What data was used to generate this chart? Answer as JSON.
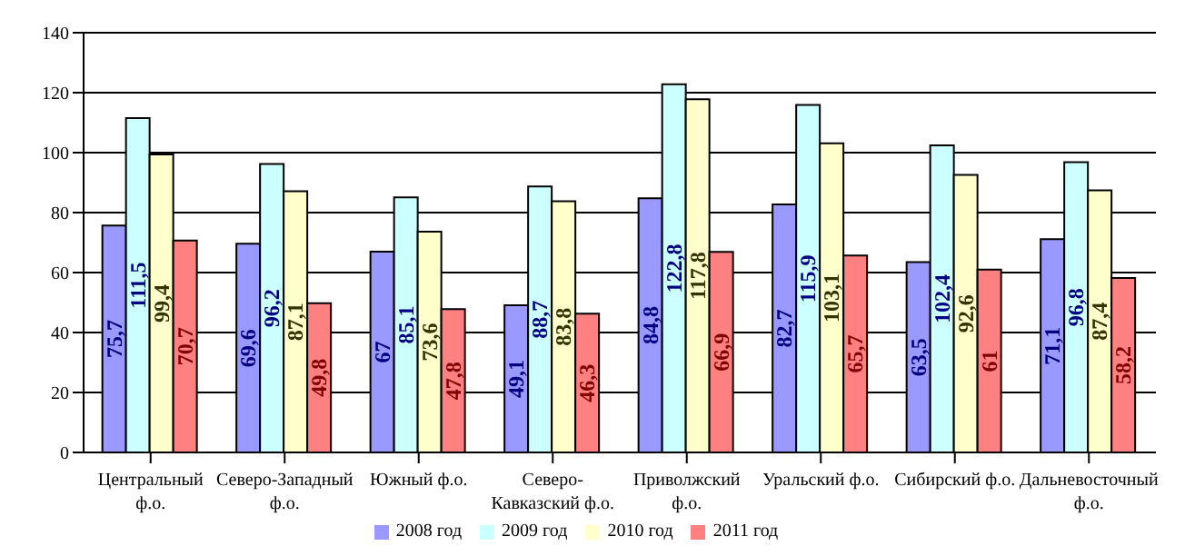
{
  "chart_data": {
    "type": "bar",
    "categories": [
      "Центральный ф.о.",
      "Северо-Западный ф.о.",
      "Южный ф.о.",
      "Северо-Кавказский ф.о.",
      "Приволжский ф.о.",
      "Уральский ф.о.",
      "Сибирский ф.о.",
      "Дальневосточный ф.о."
    ],
    "series": [
      {
        "name": "2008 год",
        "color": "#9999ff",
        "values": [
          75.7,
          69.6,
          67,
          49.1,
          84.8,
          82.7,
          63.5,
          71.1
        ],
        "value_labels": [
          "75,7",
          "69,6",
          "67",
          "49,1",
          "84,8",
          "82,7",
          "63,5",
          "71,1"
        ]
      },
      {
        "name": "2009 год",
        "color": "#ccffff",
        "values": [
          111.5,
          96.2,
          85.1,
          88.7,
          122.8,
          115.9,
          102.4,
          96.8
        ],
        "value_labels": [
          "111,5",
          "96,2",
          "85,1",
          "88,7",
          "122,8",
          "115,9",
          "102,4",
          "96,8"
        ]
      },
      {
        "name": "2010 год",
        "color": "#ffffcc",
        "values": [
          99.4,
          87.1,
          73.6,
          83.8,
          117.8,
          103.1,
          92.6,
          87.4
        ],
        "value_labels": [
          "99,4",
          "87,1",
          "73,6",
          "83,8",
          "117,8",
          "103,1",
          "92,6",
          "87,4"
        ]
      },
      {
        "name": "2011 год",
        "color": "#ff8080",
        "values": [
          70.7,
          49.8,
          47.8,
          46.3,
          66.9,
          65.7,
          61,
          58.2
        ],
        "value_labels": [
          "70,7",
          "49,8",
          "47,8",
          "46,3",
          "66,9",
          "65,7",
          "61",
          "58,2"
        ]
      }
    ],
    "ylim": [
      0,
      140
    ],
    "yticks": [
      0,
      20,
      40,
      60,
      80,
      100,
      120,
      140
    ],
    "grid": "y",
    "legend": "bottom"
  }
}
